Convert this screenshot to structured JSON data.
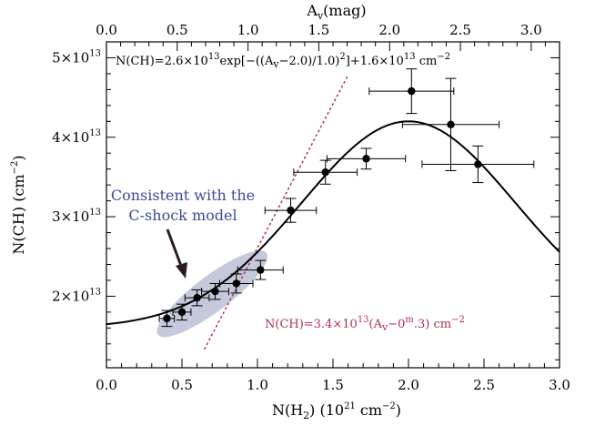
{
  "colors": {
    "fit_line": "#000000",
    "linear_line": "#b0304a",
    "annotation_text": "#3b4a9c",
    "ellipse_fill": "#c4c9dc",
    "points": "#000000"
  },
  "labels": {
    "top_axis_main": "A",
    "top_axis_sub": "v",
    "top_axis_unit": "(mag)",
    "left_axis_main": "N(CH) (cm",
    "left_axis_sup": "−2",
    "left_axis_end": ")",
    "bottom_axis_main": "N(H",
    "bottom_axis_sub": "2",
    "bottom_axis_mid": ") (10",
    "bottom_axis_sup": "21",
    "bottom_axis_unit": " cm",
    "bottom_axis_sup2": "−2",
    "bottom_axis_end": ")",
    "fit_eq": {
      "p1": "N(CH)=2.6×10",
      "s1": "13",
      "p2": "exp[−((A",
      "b1": "v",
      "p3": "−2.0)/1.0)",
      "s2": "2",
      "p4": "]+1.6×10",
      "s3": "13",
      "p5": " cm",
      "s4": "−2"
    },
    "linear_eq": {
      "p1": "N(CH)=3.4×10",
      "s1": "13",
      "p2": "(A",
      "b1": "v",
      "p3": "−0",
      "s2": "m",
      "p4": ".3) cm",
      "s3": "−2"
    },
    "annotation_line1": "Consistent with the",
    "annotation_line2": "C-shock model"
  },
  "chart_data": {
    "type": "scatter",
    "x_label": "N(H2) (10^21 cm^-2)",
    "y_label": "N(CH) (cm^-2)",
    "top_x_label": "Av(mag)",
    "xlim": [
      0.0,
      3.0
    ],
    "ylim": [
      11000000000000.0,
      52000000000000.0
    ],
    "top_xlim": [
      0.0,
      3.2
    ],
    "x_ticks": [
      {
        "v": 0.0,
        "label": "0.0"
      },
      {
        "v": 0.5,
        "label": "0.5"
      },
      {
        "v": 1.0,
        "label": "1.0"
      },
      {
        "v": 1.5,
        "label": "1.5"
      },
      {
        "v": 2.0,
        "label": "2.0"
      },
      {
        "v": 2.5,
        "label": "2.5"
      },
      {
        "v": 3.0,
        "label": "3.0"
      }
    ],
    "top_ticks": [
      {
        "v": 0.0,
        "label": "0.0"
      },
      {
        "v": 0.5,
        "label": "0.5"
      },
      {
        "v": 1.0,
        "label": "1.0"
      },
      {
        "v": 1.5,
        "label": "1.5"
      },
      {
        "v": 2.0,
        "label": "2.0"
      },
      {
        "v": 2.5,
        "label": "2.5"
      },
      {
        "v": 3.0,
        "label": "3.0"
      }
    ],
    "y_ticks": [
      {
        "v": 20000000000000.0,
        "mant": "2×10",
        "exp": "13"
      },
      {
        "v": 30000000000000.0,
        "mant": "3×10",
        "exp": "13"
      },
      {
        "v": 40000000000000.0,
        "mant": "4×10",
        "exp": "13"
      },
      {
        "v": 50000000000000.0,
        "mant": "5×10",
        "exp": "13"
      }
    ],
    "points": [
      {
        "x": 0.4,
        "y": 17200000000000.0,
        "xerr": 0.05,
        "yerr": 1000000000000.0
      },
      {
        "x": 0.5,
        "y": 18000000000000.0,
        "xerr": 0.06,
        "yerr": 1000000000000.0
      },
      {
        "x": 0.6,
        "y": 19800000000000.0,
        "xerr": 0.08,
        "yerr": 1000000000000.0
      },
      {
        "x": 0.72,
        "y": 20600000000000.0,
        "xerr": 0.09,
        "yerr": 1000000000000.0
      },
      {
        "x": 0.86,
        "y": 21600000000000.0,
        "xerr": 0.11,
        "yerr": 1200000000000.0
      },
      {
        "x": 1.02,
        "y": 23300000000000.0,
        "xerr": 0.15,
        "yerr": 1200000000000.0
      },
      {
        "x": 1.22,
        "y": 30800000000000.0,
        "xerr": 0.17,
        "yerr": 1500000000000.0
      },
      {
        "x": 1.45,
        "y": 35600000000000.0,
        "xerr": 0.21,
        "yerr": 1500000000000.0
      },
      {
        "x": 1.72,
        "y": 37300000000000.0,
        "xerr": 0.26,
        "yerr": 1300000000000.0
      },
      {
        "x": 2.02,
        "y": 45800000000000.0,
        "xerr": 0.28,
        "yerr": 2800000000000.0
      },
      {
        "x": 2.28,
        "y": 41600000000000.0,
        "xerr": 0.32,
        "yerr": 5800000000000.0
      },
      {
        "x": 2.46,
        "y": 36600000000000.0,
        "xerr": 0.37,
        "yerr": 2300000000000.0
      }
    ],
    "fit_curve": {
      "type": "gaussian_plus_constant",
      "amplitude": 26000000000000.0,
      "center_x": 2.0,
      "width": 1.0,
      "offset": 16000000000000.0,
      "note": "curve plotted against the lower N(H2) axis using Av = (3.2/3.0)·N(H2); peak near N(H2)=2.0"
    },
    "linear_line": {
      "slope_per_mag": 34000000000000.0,
      "av_offset": 0.3,
      "x_start": 0.65,
      "x_end": 1.6
    },
    "ellipse": {
      "center_x": 0.7,
      "center_y": 20300000000000.0,
      "rx": 0.45,
      "ry_frac": 0.26,
      "rotation_deg": -37
    }
  }
}
